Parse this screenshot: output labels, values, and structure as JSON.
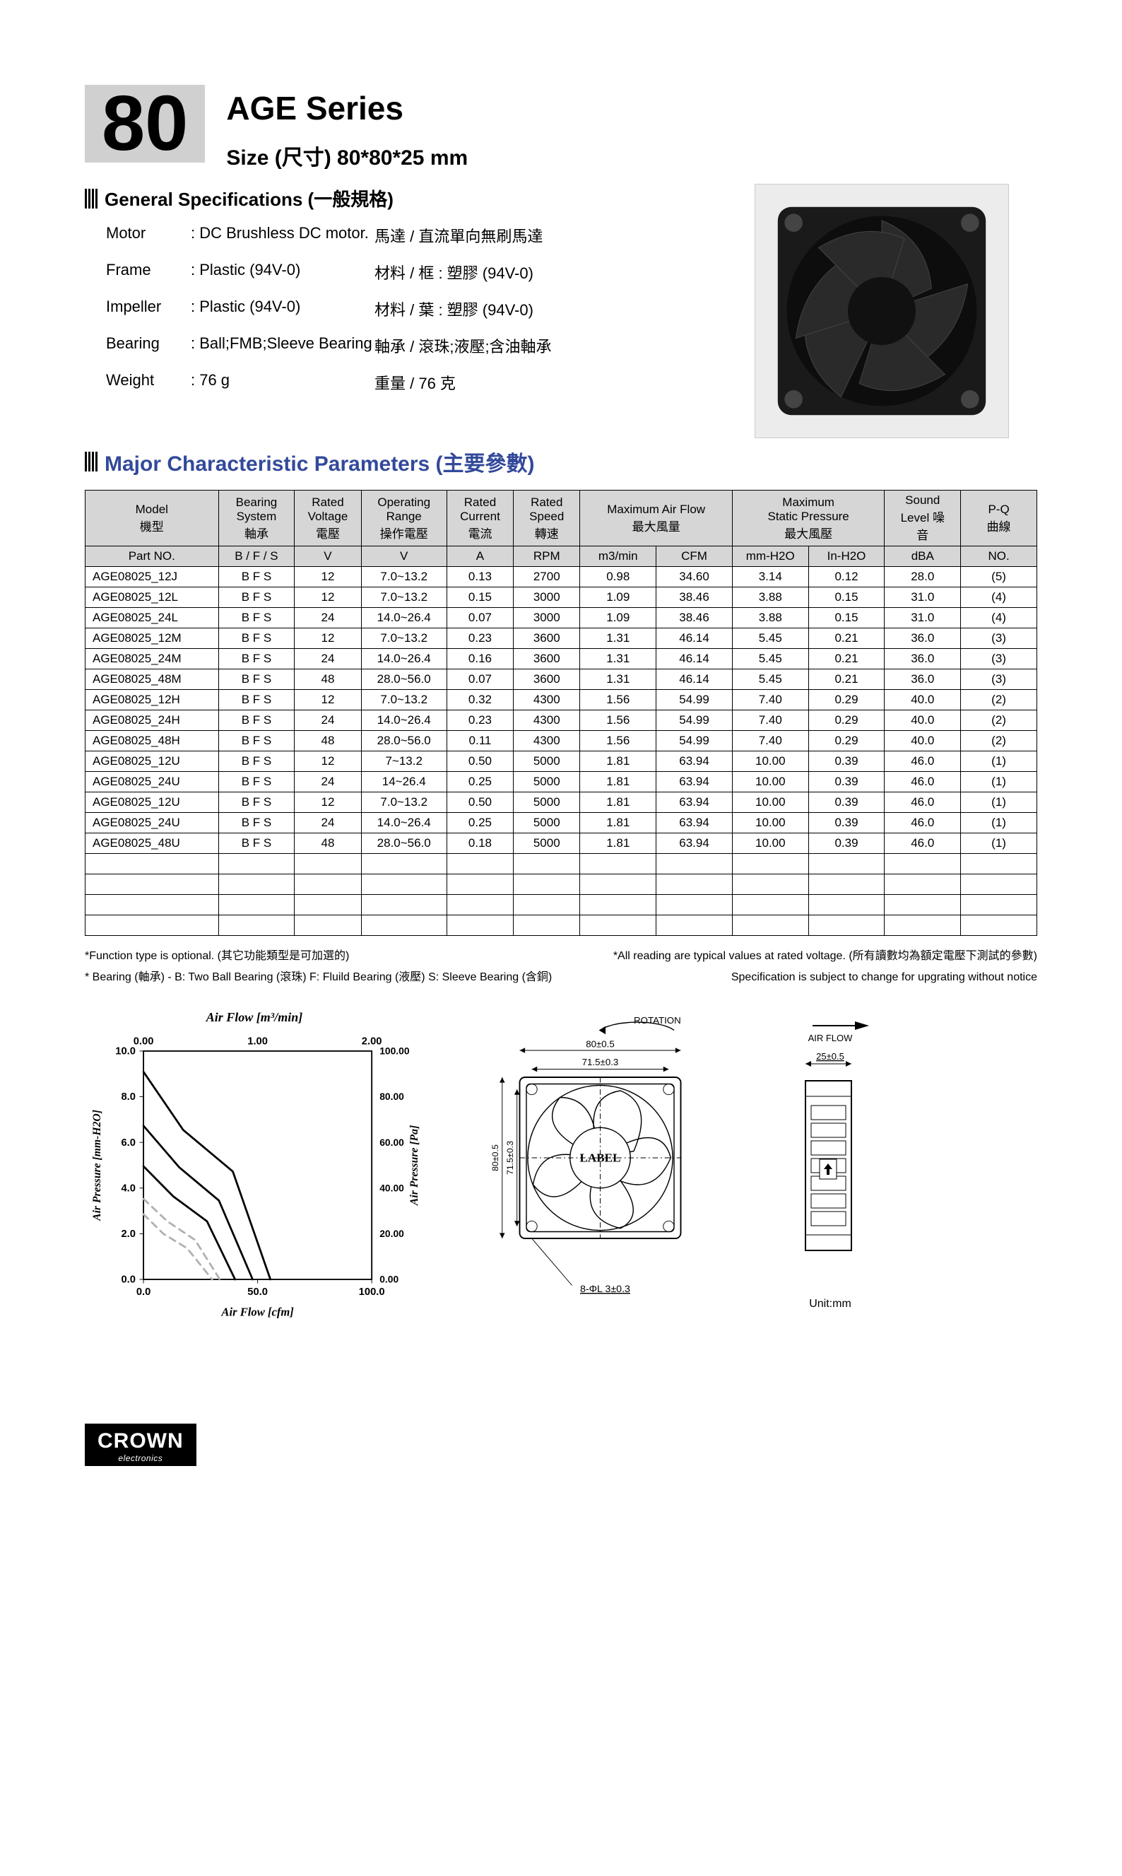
{
  "header": {
    "number": "80",
    "series_title": "AGE Series",
    "size_line": "Size (尺寸) 80*80*25 mm"
  },
  "general_specs": {
    "title": "General Specifications  (一般規格)",
    "rows": [
      {
        "label": "Motor",
        "value": ": DC Brushless DC motor.",
        "zh": "馬達 / 直流單向無刷馬達"
      },
      {
        "label": "Frame",
        "value": ": Plastic (94V-0)",
        "zh": "材料 / 框 : 塑膠 (94V-0)"
      },
      {
        "label": "Impeller",
        "value": ": Plastic (94V-0)",
        "zh": "材料 / 葉 : 塑膠 (94V-0)"
      },
      {
        "label": "Bearing",
        "value": ": Ball;FMB;Sleeve Bearing",
        "zh": "軸承 / 滾珠;液壓;含油軸承"
      },
      {
        "label": "Weight",
        "value": ": 76  g",
        "zh": "重量 / 76  克"
      }
    ]
  },
  "params": {
    "title": "Major Characteristic Parameters (主要參數)",
    "header1": [
      {
        "t": "Model\n機型",
        "span": 1
      },
      {
        "t": "Bearing\nSystem\n軸承",
        "span": 1
      },
      {
        "t": "Rated\nVoltage\n電壓",
        "span": 1
      },
      {
        "t": "Operating\nRange\n操作電壓",
        "span": 1
      },
      {
        "t": "Rated\nCurrent\n電流",
        "span": 1
      },
      {
        "t": "Rated\nSpeed\n轉速",
        "span": 1
      },
      {
        "t": "Maximum Air Flow\n最大風量",
        "span": 2
      },
      {
        "t": "Maximum\nStatic  Pressure\n最大風壓",
        "span": 2
      },
      {
        "t": "Sound\nLevel   噪\n音",
        "span": 1
      },
      {
        "t": "P-Q\n曲線",
        "span": 1
      }
    ],
    "header2": [
      "Part NO.",
      "B / F / S",
      "V",
      "V",
      "A",
      "RPM",
      "m3/min",
      "CFM",
      "mm-H2O",
      "In-H2O",
      "dBA",
      "NO."
    ],
    "rows": [
      [
        "AGE08025_12J",
        "B F S",
        "12",
        "7.0~13.2",
        "0.13",
        "2700",
        "0.98",
        "34.60",
        "3.14",
        "0.12",
        "28.0",
        "(5)"
      ],
      [
        "AGE08025_12L",
        "B F S",
        "12",
        "7.0~13.2",
        "0.15",
        "3000",
        "1.09",
        "38.46",
        "3.88",
        "0.15",
        "31.0",
        "(4)"
      ],
      [
        "AGE08025_24L",
        "B F S",
        "24",
        "14.0~26.4",
        "0.07",
        "3000",
        "1.09",
        "38.46",
        "3.88",
        "0.15",
        "31.0",
        "(4)"
      ],
      [
        "AGE08025_12M",
        "B F S",
        "12",
        "7.0~13.2",
        "0.23",
        "3600",
        "1.31",
        "46.14",
        "5.45",
        "0.21",
        "36.0",
        "(3)"
      ],
      [
        "AGE08025_24M",
        "B F S",
        "24",
        "14.0~26.4",
        "0.16",
        "3600",
        "1.31",
        "46.14",
        "5.45",
        "0.21",
        "36.0",
        "(3)"
      ],
      [
        "AGE08025_48M",
        "B F S",
        "48",
        "28.0~56.0",
        "0.07",
        "3600",
        "1.31",
        "46.14",
        "5.45",
        "0.21",
        "36.0",
        "(3)"
      ],
      [
        "AGE08025_12H",
        "B F S",
        "12",
        "7.0~13.2",
        "0.32",
        "4300",
        "1.56",
        "54.99",
        "7.40",
        "0.29",
        "40.0",
        "(2)"
      ],
      [
        "AGE08025_24H",
        "B F S",
        "24",
        "14.0~26.4",
        "0.23",
        "4300",
        "1.56",
        "54.99",
        "7.40",
        "0.29",
        "40.0",
        "(2)"
      ],
      [
        "AGE08025_48H",
        "B F S",
        "48",
        "28.0~56.0",
        "0.11",
        "4300",
        "1.56",
        "54.99",
        "7.40",
        "0.29",
        "40.0",
        "(2)"
      ],
      [
        "AGE08025_12U",
        "B  F  S",
        "12",
        "7~13.2",
        "0.50",
        "5000",
        "1.81",
        "63.94",
        "10.00",
        "0.39",
        "46.0",
        "(1)"
      ],
      [
        "AGE08025_24U",
        "B  F  S",
        "24",
        "14~26.4",
        "0.25",
        "5000",
        "1.81",
        "63.94",
        "10.00",
        "0.39",
        "46.0",
        "(1)"
      ],
      [
        "AGE08025_12U",
        "B  F  S",
        "12",
        "7.0~13.2",
        "0.50",
        "5000",
        "1.81",
        "63.94",
        "10.00",
        "0.39",
        "46.0",
        "(1)"
      ],
      [
        "AGE08025_24U",
        "B  F  S",
        "24",
        "14.0~26.4",
        "0.25",
        "5000",
        "1.81",
        "63.94",
        "10.00",
        "0.39",
        "46.0",
        "(1)"
      ],
      [
        "AGE08025_48U",
        "B  F  S",
        "48",
        "28.0~56.0",
        "0.18",
        "5000",
        "1.81",
        "63.94",
        "10.00",
        "0.39",
        "46.0",
        "(1)"
      ]
    ],
    "empty_rows": 4,
    "col_widths": [
      "14%",
      "8%",
      "7%",
      "9%",
      "7%",
      "7%",
      "8%",
      "8%",
      "8%",
      "8%",
      "8%",
      "8%"
    ]
  },
  "footnotes": {
    "line1a": "*Function type is optional. (其它功能類型是可加選的)",
    "line1b": "*All reading are typical values at rated voltage. (所有讀數均為額定電壓下測試的參數)",
    "line2a": "* Bearing (軸承) - B: Two Ball Bearing (滾珠) F: Fluild Bearing (液壓)  S: Sleeve Bearing (含銅)",
    "line2b": "Specification is subject to change for upgrating without notice"
  },
  "chart": {
    "title_top": "Air Flow [m³/min]",
    "title_bottom": "Air Flow [cfm]",
    "ylabel_left": "Air Pressure [mm-H2O]",
    "ylabel_right": "Air Pressure [Pa]",
    "x_top_ticks": [
      "0.00",
      "1.00",
      "2.00"
    ],
    "x_bottom_ticks": [
      "0.0",
      "50.0",
      "100.0"
    ],
    "y_left_ticks": [
      "0.0",
      "2.0",
      "4.0",
      "6.0",
      "8.0",
      "10.0"
    ],
    "y_right_ticks": [
      "0.00",
      "20.00",
      "40.00",
      "60.00",
      "80.00",
      "100.00"
    ],
    "plot_bg": "#ffffff",
    "axis_color": "#000000",
    "grid_color": "#000000",
    "line_color": "#000000",
    "dash_color": "#b0b0b0",
    "line_width": 3,
    "dash_width": 3,
    "xlim_cfm": [
      0,
      115
    ],
    "ylim_mmh2o": [
      0,
      11
    ],
    "curves": [
      {
        "name": "(1)",
        "style": "solid",
        "pts": [
          [
            0,
            10.0
          ],
          [
            20,
            7.2
          ],
          [
            45,
            5.2
          ],
          [
            63.94,
            0
          ]
        ]
      },
      {
        "name": "(2)",
        "style": "solid",
        "pts": [
          [
            0,
            7.4
          ],
          [
            18,
            5.4
          ],
          [
            38,
            3.8
          ],
          [
            54.99,
            0
          ]
        ]
      },
      {
        "name": "(3)",
        "style": "solid",
        "pts": [
          [
            0,
            5.45
          ],
          [
            15,
            4.0
          ],
          [
            32,
            2.8
          ],
          [
            46.14,
            0
          ]
        ]
      },
      {
        "name": "(4)",
        "style": "dash",
        "pts": [
          [
            0,
            3.88
          ],
          [
            12,
            2.8
          ],
          [
            26,
            1.9
          ],
          [
            38.46,
            0
          ]
        ]
      },
      {
        "name": "(5)",
        "style": "dash",
        "pts": [
          [
            0,
            3.14
          ],
          [
            10,
            2.2
          ],
          [
            22,
            1.5
          ],
          [
            34.6,
            0
          ]
        ]
      }
    ]
  },
  "dimensions": {
    "rotation_label": "ROTATION",
    "outer": "80±0.5",
    "pitch": "71.5±0.3",
    "outer_v": "80±0.5",
    "pitch_v": "71.5±0.3",
    "hole": "8-ΦL 3±0.3",
    "center_label": "LABEL",
    "air_flow_label": "AIR  FLOW",
    "thickness": "25±0.5",
    "unit": "Unit:mm"
  },
  "logo": {
    "main": "CROWN",
    "sub": "electronics"
  }
}
